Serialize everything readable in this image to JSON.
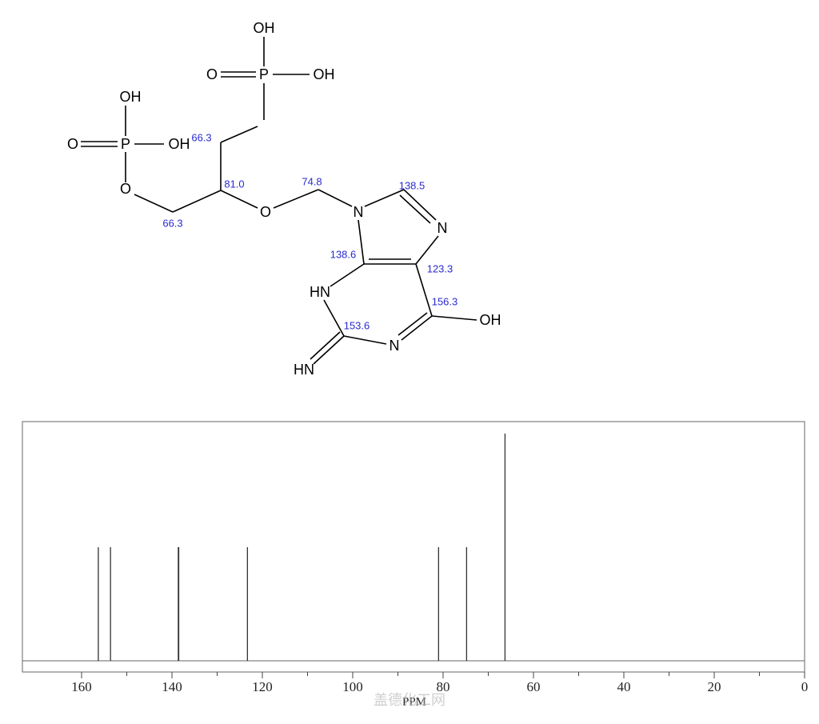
{
  "chart_data": {
    "type": "spectrum",
    "x": [
      156.3,
      153.6,
      138.6,
      138.5,
      123.3,
      81.0,
      74.8,
      66.3
    ],
    "values": [
      0.5,
      0.5,
      0.5,
      0.5,
      0.5,
      0.5,
      0.5,
      1.0
    ],
    "color": "#333333",
    "xlim": [
      173.1,
      0
    ],
    "xticks": [
      0,
      20,
      40,
      60,
      80,
      100,
      120,
      140,
      160
    ],
    "ylim": [
      0,
      1.053
    ],
    "xlabel": "PPM"
  },
  "molecule": {
    "atoms": [
      "OH",
      "O",
      "P",
      "OH",
      "OH",
      "O",
      "P",
      "OH",
      "O",
      "O",
      "N",
      "N",
      "HN",
      "N",
      "OH",
      "HN"
    ],
    "shifts": [
      "66.3",
      "81.0",
      "66.3",
      "74.8",
      "138.5",
      "138.6",
      "123.3",
      "156.3",
      "153.6"
    ]
  },
  "watermark": "盖德化工网"
}
